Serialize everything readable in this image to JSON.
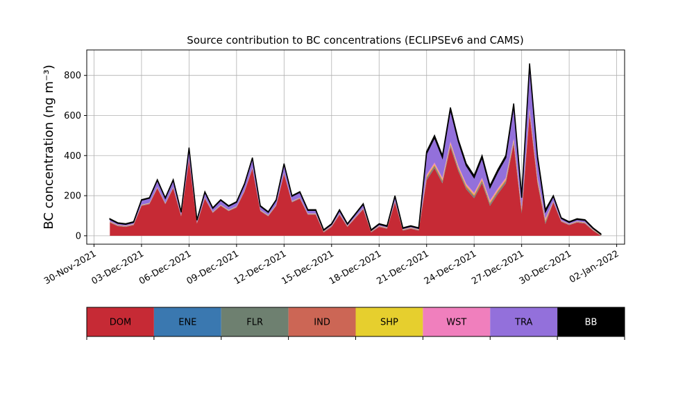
{
  "chart_data": {
    "type": "stacked_area",
    "title": "Source contribution to BC concentrations (ECLIPSEv6 and CAMS)",
    "y_label": "BC concentration (ng m⁻³)",
    "x": [
      "2021-12-01T00:00",
      "2021-12-01T12:00",
      "2021-12-02T00:00",
      "2021-12-02T12:00",
      "2021-12-03T00:00",
      "2021-12-03T12:00",
      "2021-12-04T00:00",
      "2021-12-04T12:00",
      "2021-12-05T00:00",
      "2021-12-05T12:00",
      "2021-12-06T00:00",
      "2021-12-06T12:00",
      "2021-12-07T00:00",
      "2021-12-07T12:00",
      "2021-12-08T00:00",
      "2021-12-08T12:00",
      "2021-12-09T00:00",
      "2021-12-09T12:00",
      "2021-12-10T00:00",
      "2021-12-10T12:00",
      "2021-12-11T00:00",
      "2021-12-11T12:00",
      "2021-12-12T00:00",
      "2021-12-12T12:00",
      "2021-12-13T00:00",
      "2021-12-13T12:00",
      "2021-12-14T00:00",
      "2021-12-14T12:00",
      "2021-12-15T00:00",
      "2021-12-15T12:00",
      "2021-12-16T00:00",
      "2021-12-16T12:00",
      "2021-12-17T00:00",
      "2021-12-17T12:00",
      "2021-12-18T00:00",
      "2021-12-18T12:00",
      "2021-12-19T00:00",
      "2021-12-19T12:00",
      "2021-12-20T00:00",
      "2021-12-20T12:00",
      "2021-12-21T00:00",
      "2021-12-21T12:00",
      "2021-12-22T00:00",
      "2021-12-22T12:00",
      "2021-12-23T00:00",
      "2021-12-23T12:00",
      "2021-12-24T00:00",
      "2021-12-24T12:00",
      "2021-12-25T00:00",
      "2021-12-25T12:00",
      "2021-12-26T00:00",
      "2021-12-26T12:00",
      "2021-12-27T00:00",
      "2021-12-27T12:00",
      "2021-12-28T00:00",
      "2021-12-28T12:00",
      "2021-12-29T00:00",
      "2021-12-29T12:00",
      "2021-12-30T00:00",
      "2021-12-30T12:00",
      "2021-12-31T00:00",
      "2021-12-31T12:00",
      "2022-01-01T00:00"
    ],
    "series": [
      {
        "name": "DOM",
        "color": "#c62a35",
        "values": [
          66,
          48,
          44,
          53,
          149,
          158,
          237,
          158,
          237,
          97,
          378,
          61,
          185,
          114,
          149,
          123,
          141,
          220,
          334,
          123,
          97,
          149,
          308,
          167,
          185,
          105,
          105,
          17,
          44,
          105,
          44,
          88,
          132,
          17,
          44,
          35,
          167,
          26,
          35,
          26,
          277,
          337,
          262,
          442,
          322,
          232,
          187,
          262,
          149,
          209,
          262,
          457,
          112,
          607,
          262,
          59,
          167,
          70,
          53,
          66,
          61,
          26,
          0
        ]
      },
      {
        "name": "ENE",
        "color": "#3a78b0",
        "values": [
          1,
          1,
          1,
          1,
          1,
          1,
          1,
          1,
          1,
          1,
          1,
          1,
          1,
          1,
          1,
          1,
          1,
          1,
          1,
          1,
          1,
          1,
          1,
          1,
          1,
          1,
          1,
          1,
          1,
          1,
          1,
          1,
          1,
          1,
          1,
          1,
          1,
          1,
          1,
          1,
          1,
          1,
          1,
          1,
          1,
          1,
          1,
          1,
          1,
          1,
          1,
          1,
          1,
          1,
          1,
          1,
          1,
          1,
          1,
          1,
          1,
          1,
          1
        ]
      },
      {
        "name": "FLR",
        "color": "#6e8070",
        "values": [
          1,
          1,
          1,
          1,
          1,
          1,
          1,
          1,
          1,
          1,
          1,
          1,
          1,
          1,
          1,
          1,
          1,
          1,
          1,
          1,
          1,
          1,
          1,
          1,
          1,
          1,
          1,
          1,
          1,
          1,
          1,
          1,
          1,
          1,
          1,
          1,
          1,
          1,
          1,
          1,
          8,
          8,
          8,
          8,
          8,
          8,
          8,
          8,
          8,
          8,
          8,
          8,
          8,
          8,
          8,
          8,
          1,
          1,
          1,
          1,
          1,
          1,
          1
        ]
      },
      {
        "name": "IND",
        "color": "#cc6655",
        "values": [
          2,
          2,
          2,
          2,
          2,
          2,
          2,
          2,
          2,
          2,
          2,
          2,
          2,
          2,
          2,
          2,
          2,
          2,
          2,
          2,
          2,
          2,
          2,
          2,
          2,
          2,
          2,
          2,
          2,
          2,
          2,
          2,
          2,
          2,
          2,
          2,
          2,
          2,
          2,
          2,
          6,
          6,
          6,
          6,
          6,
          6,
          6,
          6,
          6,
          6,
          6,
          6,
          6,
          6,
          6,
          6,
          2,
          2,
          2,
          2,
          2,
          2,
          2
        ]
      },
      {
        "name": "SHP",
        "color": "#e6cf2e",
        "values": [
          1,
          1,
          1,
          1,
          1,
          1,
          1,
          1,
          1,
          1,
          1,
          1,
          1,
          1,
          1,
          1,
          1,
          1,
          1,
          1,
          1,
          1,
          1,
          1,
          1,
          1,
          1,
          1,
          1,
          1,
          1,
          1,
          1,
          1,
          1,
          1,
          1,
          1,
          1,
          1,
          5,
          5,
          5,
          5,
          5,
          5,
          5,
          5,
          5,
          5,
          5,
          5,
          5,
          5,
          5,
          5,
          1,
          1,
          1,
          1,
          1,
          1,
          1
        ]
      },
      {
        "name": "WST",
        "color": "#f07fbd",
        "values": [
          1,
          1,
          1,
          1,
          1,
          1,
          1,
          1,
          1,
          1,
          1,
          1,
          1,
          1,
          1,
          1,
          1,
          1,
          1,
          1,
          1,
          1,
          1,
          1,
          1,
          1,
          1,
          1,
          1,
          1,
          1,
          1,
          1,
          1,
          1,
          1,
          1,
          1,
          1,
          1,
          8,
          8,
          8,
          8,
          8,
          8,
          8,
          8,
          8,
          8,
          8,
          8,
          8,
          8,
          8,
          8,
          1,
          1,
          1,
          1,
          1,
          1,
          1
        ]
      },
      {
        "name": "TRA",
        "color": "#9370db",
        "values": [
          10,
          8,
          7,
          8,
          22,
          23,
          34,
          23,
          34,
          14,
          53,
          10,
          26,
          17,
          22,
          18,
          20,
          31,
          47,
          18,
          14,
          22,
          43,
          24,
          26,
          16,
          16,
          4,
          7,
          16,
          7,
          13,
          19,
          4,
          7,
          6,
          24,
          5,
          6,
          5,
          105,
          125,
          100,
          160,
          120,
          90,
          75,
          100,
          63,
          83,
          100,
          165,
          50,
          215,
          100,
          33,
          24,
          11,
          8,
          10,
          10,
          5,
          1
        ]
      },
      {
        "name": "BB",
        "color": "#000000",
        "values": [
          3,
          3,
          3,
          3,
          3,
          3,
          3,
          3,
          3,
          3,
          3,
          3,
          3,
          3,
          3,
          3,
          3,
          3,
          3,
          3,
          3,
          3,
          3,
          3,
          3,
          3,
          3,
          3,
          3,
          3,
          3,
          3,
          3,
          3,
          3,
          3,
          3,
          3,
          3,
          3,
          10,
          10,
          10,
          10,
          10,
          10,
          10,
          10,
          10,
          10,
          10,
          10,
          10,
          10,
          10,
          10,
          3,
          3,
          3,
          3,
          3,
          3,
          3
        ]
      }
    ],
    "xlim": [
      "2021-11-29T13:00",
      "2022-01-02T12:00"
    ],
    "xticks": [
      {
        "value": "2021-11-30T00:00",
        "label": "30-Nov-2021"
      },
      {
        "value": "2021-12-03T00:00",
        "label": "03-Dec-2021"
      },
      {
        "value": "2021-12-06T00:00",
        "label": "06-Dec-2021"
      },
      {
        "value": "2021-12-09T00:00",
        "label": "09-Dec-2021"
      },
      {
        "value": "2021-12-12T00:00",
        "label": "12-Dec-2021"
      },
      {
        "value": "2021-12-15T00:00",
        "label": "15-Dec-2021"
      },
      {
        "value": "2021-12-18T00:00",
        "label": "18-Dec-2021"
      },
      {
        "value": "2021-12-21T00:00",
        "label": "21-Dec-2021"
      },
      {
        "value": "2021-12-24T00:00",
        "label": "24-Dec-2021"
      },
      {
        "value": "2021-12-27T00:00",
        "label": "27-Dec-2021"
      },
      {
        "value": "2021-12-30T00:00",
        "label": "30-Dec-2021"
      },
      {
        "value": "2022-01-02T00:00",
        "label": "02-Jan-2022"
      }
    ],
    "ylim": [
      -42,
      927
    ],
    "yticks": [
      0,
      200,
      400,
      600,
      800
    ],
    "grid": true
  }
}
